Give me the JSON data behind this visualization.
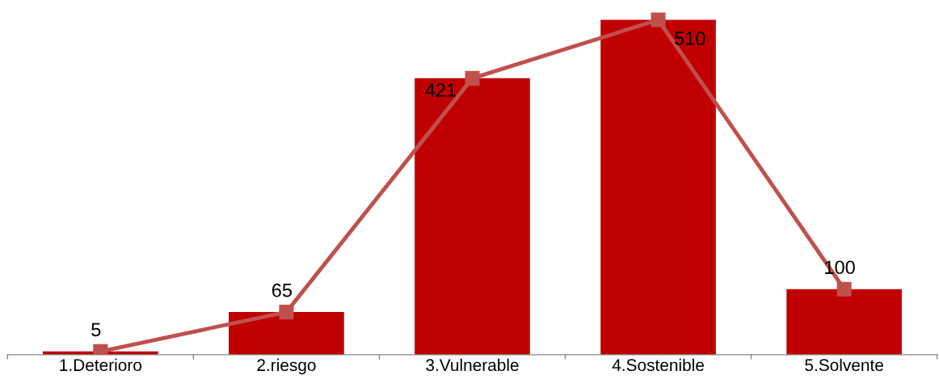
{
  "chart_data": {
    "type": "bar",
    "categories": [
      "1.Deterioro",
      "2.riesgo",
      "3.Vulnerable",
      "4.Sostenible",
      "5.Solvente"
    ],
    "series": [
      {
        "color": "#c00000",
        "values": [
          5,
          65,
          421,
          510,
          100
        ]
      },
      {
        "type": "line",
        "color": "#c0504d",
        "values": [
          5,
          65,
          421,
          510,
          100
        ],
        "marker": "square",
        "line_style": "solid",
        "value_labels": [
          "5",
          "65",
          "421",
          "510",
          "100"
        ]
      }
    ],
    "grid": false,
    "tick_labels": "x"
  }
}
